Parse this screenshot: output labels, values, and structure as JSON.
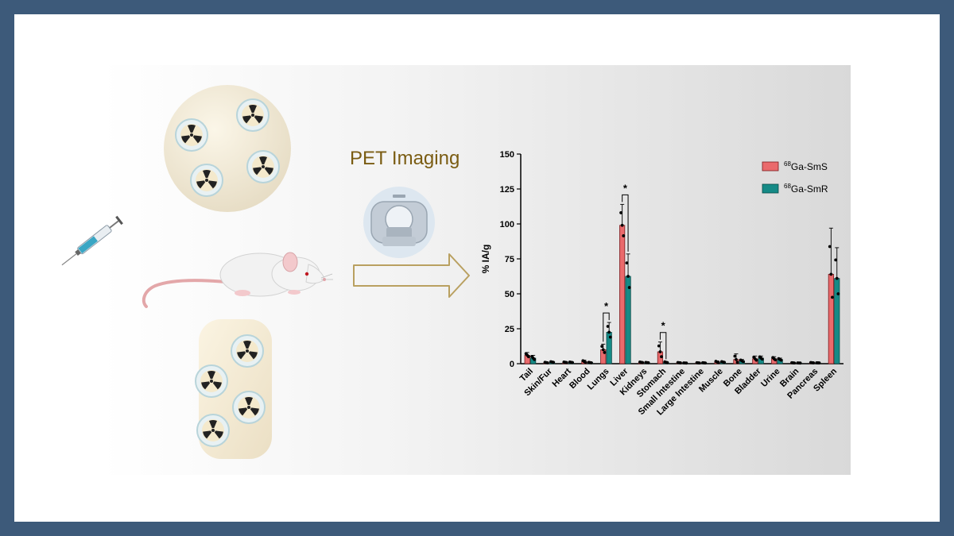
{
  "title": "PET Imaging",
  "colors": {
    "sms": "#ea6a6c",
    "smr": "#158a86",
    "arrow": "#8a6a1a"
  },
  "icons": [
    "round-implant-icon",
    "rectangular-implant-icon",
    "radiation-icon",
    "syringe-icon",
    "mouse-icon",
    "pet-scanner-icon",
    "arrow-right-icon"
  ],
  "chart_data": {
    "type": "bar",
    "ylabel": "% IA/g",
    "ylim": [
      0,
      150
    ],
    "yticks": [
      0,
      25,
      50,
      75,
      100,
      125,
      150
    ],
    "categories": [
      "Tail",
      "Skin/Fur",
      "Heart",
      "Blood",
      "Lungs",
      "Liver",
      "Kidneys",
      "Stomach",
      "Small Intestine",
      "Large Intestine",
      "Muscle",
      "Bone",
      "Bladder",
      "Urine",
      "Brain",
      "Pancreas",
      "Spleen"
    ],
    "series": [
      {
        "name": "68Ga-SmS",
        "name_sup": "68",
        "name_text": "Ga-SmS",
        "values": [
          6,
          0.8,
          1,
          1.5,
          10,
          99,
          1,
          8.5,
          0.7,
          0.6,
          1.2,
          3,
          3.5,
          3.5,
          0.6,
          0.7,
          64
        ],
        "errors": [
          2,
          0.3,
          0.3,
          1,
          4,
          15,
          0.3,
          7,
          0.2,
          0.2,
          0.8,
          4,
          2,
          1.5,
          0.2,
          0.2,
          33
        ]
      },
      {
        "name": "68Ga-SmR",
        "name_sup": "68",
        "name_text": "Ga-SmR",
        "values": [
          4,
          1.2,
          1,
          0.8,
          22.5,
          62.5,
          0.8,
          1,
          0.5,
          0.6,
          1.2,
          2,
          4,
          3,
          0.5,
          0.6,
          61
        ],
        "errors": [
          2,
          0.4,
          0.3,
          0.3,
          7,
          16,
          0.2,
          0.5,
          0.1,
          0.2,
          0.5,
          1,
          1.5,
          1,
          0.1,
          0.1,
          22
        ]
      }
    ],
    "significance": [
      {
        "category": "Lungs",
        "label": "*"
      },
      {
        "category": "Liver",
        "label": "*"
      },
      {
        "category": "Stomach",
        "label": "*"
      }
    ],
    "legend_position": "top-right",
    "grid": false
  }
}
